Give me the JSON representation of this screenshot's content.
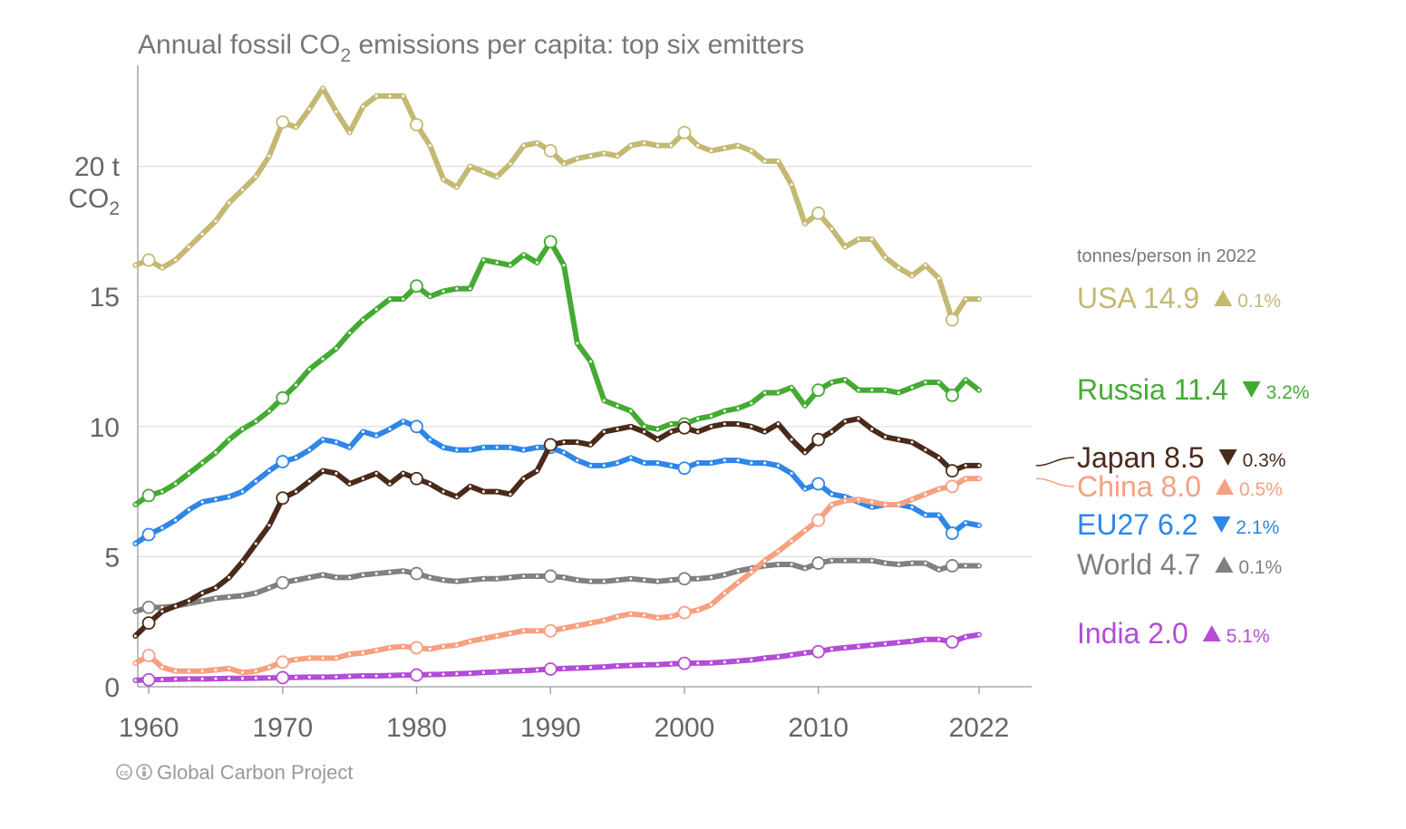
{
  "title": {
    "main": "Annual fossil CO",
    "sub": "2",
    "rest": " emissions per capita: top six emitters"
  },
  "y_unit": {
    "line1": "20 t",
    "line2": "CO",
    "line2_sub": "2"
  },
  "legend_header": "tonnes/person in 2022",
  "credit": {
    "icon": "creative-commons-icon",
    "text": "Global Carbon Project"
  },
  "chart_data": {
    "type": "line",
    "x_range": [
      1959,
      2023
    ],
    "ylim": [
      0,
      23.5
    ],
    "y_ticks": [
      0,
      5,
      10,
      15,
      20
    ],
    "y_tick_labels": [
      "0",
      "5",
      "10",
      "15",
      ""
    ],
    "x_ticks": [
      1960,
      1970,
      1980,
      1990,
      2000,
      2010,
      2022
    ],
    "x_tick_labels": [
      "1960",
      "1970",
      "1980",
      "1990",
      "2000",
      "2010",
      "2022"
    ],
    "grid": "horizontal",
    "legend_placement": "right",
    "series": [
      {
        "name": "World",
        "value_2022": "4.7",
        "change": "0.1%",
        "direction": "up",
        "color": "#808080",
        "x_start": 1959,
        "values": [
          2.9,
          3.05,
          3.05,
          3.1,
          3.2,
          3.3,
          3.4,
          3.45,
          3.5,
          3.6,
          3.8,
          4.0,
          4.1,
          4.2,
          4.3,
          4.2,
          4.2,
          4.3,
          4.35,
          4.4,
          4.45,
          4.35,
          4.2,
          4.1,
          4.05,
          4.1,
          4.15,
          4.15,
          4.2,
          4.25,
          4.25,
          4.25,
          4.2,
          4.1,
          4.05,
          4.05,
          4.1,
          4.15,
          4.1,
          4.05,
          4.1,
          4.15,
          4.15,
          4.2,
          4.3,
          4.45,
          4.55,
          4.65,
          4.7,
          4.7,
          4.55,
          4.75,
          4.85,
          4.85,
          4.85,
          4.85,
          4.75,
          4.7,
          4.75,
          4.75,
          4.5,
          4.65,
          4.65,
          4.65
        ]
      },
      {
        "name": "USA",
        "value_2022": "14.9",
        "change": "0.1%",
        "direction": "up",
        "color": "#c4b973",
        "x_start": 1959,
        "values": [
          16.2,
          16.4,
          16.1,
          16.4,
          16.9,
          17.4,
          17.9,
          18.6,
          19.1,
          19.6,
          20.4,
          21.7,
          21.5,
          22.2,
          23.0,
          22.1,
          21.3,
          22.3,
          22.7,
          22.7,
          22.7,
          21.6,
          20.8,
          19.5,
          19.2,
          20.0,
          19.8,
          19.6,
          20.1,
          20.8,
          20.9,
          20.6,
          20.1,
          20.3,
          20.4,
          20.5,
          20.4,
          20.8,
          20.9,
          20.8,
          20.8,
          21.3,
          20.8,
          20.6,
          20.7,
          20.8,
          20.6,
          20.2,
          20.2,
          19.3,
          17.8,
          18.2,
          17.6,
          16.9,
          17.2,
          17.2,
          16.5,
          16.1,
          15.8,
          16.2,
          15.7,
          14.1,
          14.9,
          14.9
        ]
      },
      {
        "name": "Russia",
        "value_2022": "11.4",
        "change": "3.2%",
        "direction": "down",
        "color": "#44aa33",
        "x_start": 1959,
        "values": [
          7.0,
          7.35,
          7.5,
          7.8,
          8.2,
          8.6,
          9.0,
          9.5,
          9.9,
          10.2,
          10.6,
          11.1,
          11.6,
          12.2,
          12.6,
          13.0,
          13.6,
          14.1,
          14.5,
          14.9,
          14.9,
          15.4,
          15.0,
          15.2,
          15.3,
          15.3,
          16.4,
          16.3,
          16.2,
          16.6,
          16.3,
          17.1,
          16.2,
          13.2,
          12.5,
          11.0,
          10.8,
          10.6,
          10.0,
          9.9,
          10.1,
          10.1,
          10.3,
          10.4,
          10.6,
          10.7,
          10.9,
          11.3,
          11.3,
          11.5,
          10.8,
          11.4,
          11.7,
          11.8,
          11.4,
          11.4,
          11.4,
          11.3,
          11.5,
          11.7,
          11.7,
          11.2,
          11.8,
          11.4
        ]
      },
      {
        "name": "EU27",
        "value_2022": "6.2",
        "change": "2.1%",
        "direction": "down",
        "color": "#2e86e6",
        "x_start": 1959,
        "values": [
          5.5,
          5.85,
          6.1,
          6.4,
          6.8,
          7.1,
          7.2,
          7.3,
          7.5,
          7.9,
          8.3,
          8.65,
          8.8,
          9.1,
          9.5,
          9.4,
          9.2,
          9.8,
          9.65,
          9.9,
          10.2,
          10.0,
          9.5,
          9.2,
          9.1,
          9.1,
          9.2,
          9.2,
          9.2,
          9.1,
          9.2,
          9.2,
          9.0,
          8.7,
          8.5,
          8.5,
          8.6,
          8.8,
          8.6,
          8.6,
          8.5,
          8.4,
          8.6,
          8.6,
          8.7,
          8.7,
          8.6,
          8.6,
          8.5,
          8.2,
          7.6,
          7.8,
          7.4,
          7.3,
          7.1,
          6.9,
          7.0,
          7.0,
          6.9,
          6.6,
          6.6,
          5.9,
          6.3,
          6.2
        ]
      },
      {
        "name": "Japan",
        "value_2022": "8.5",
        "change": "0.3%",
        "direction": "down",
        "color": "#4a2a1a",
        "x_start": 1959,
        "values": [
          1.95,
          2.45,
          2.9,
          3.1,
          3.3,
          3.6,
          3.8,
          4.2,
          4.8,
          5.5,
          6.2,
          7.25,
          7.5,
          7.9,
          8.3,
          8.2,
          7.8,
          8.0,
          8.2,
          7.8,
          8.2,
          8.0,
          7.8,
          7.5,
          7.3,
          7.7,
          7.5,
          7.5,
          7.4,
          8.0,
          8.3,
          9.3,
          9.4,
          9.4,
          9.3,
          9.8,
          9.9,
          10.0,
          9.8,
          9.5,
          9.8,
          9.95,
          9.8,
          10.0,
          10.1,
          10.1,
          10.0,
          9.8,
          10.1,
          9.5,
          9.0,
          9.5,
          9.8,
          10.2,
          10.3,
          9.9,
          9.6,
          9.5,
          9.4,
          9.1,
          8.8,
          8.3,
          8.5,
          8.5
        ]
      },
      {
        "name": "China",
        "value_2022": "8.0",
        "change": "0.5%",
        "direction": "up",
        "color": "#f7a080",
        "x_start": 1959,
        "values": [
          0.9,
          1.2,
          0.75,
          0.6,
          0.6,
          0.6,
          0.65,
          0.7,
          0.55,
          0.6,
          0.75,
          0.95,
          1.05,
          1.1,
          1.1,
          1.1,
          1.25,
          1.3,
          1.4,
          1.5,
          1.55,
          1.5,
          1.45,
          1.55,
          1.6,
          1.75,
          1.85,
          1.95,
          2.05,
          2.15,
          2.15,
          2.15,
          2.25,
          2.35,
          2.45,
          2.55,
          2.7,
          2.8,
          2.75,
          2.65,
          2.7,
          2.85,
          2.95,
          3.15,
          3.6,
          4.0,
          4.4,
          4.85,
          5.2,
          5.6,
          6.0,
          6.4,
          7.0,
          7.15,
          7.2,
          7.1,
          7.0,
          7.0,
          7.2,
          7.4,
          7.6,
          7.7,
          8.0,
          8.0
        ]
      },
      {
        "name": "India",
        "value_2022": "2.0",
        "change": "5.1%",
        "direction": "up",
        "color": "#b44cd6",
        "x_start": 1959,
        "values": [
          0.25,
          0.27,
          0.28,
          0.29,
          0.3,
          0.3,
          0.31,
          0.32,
          0.32,
          0.33,
          0.34,
          0.35,
          0.36,
          0.37,
          0.37,
          0.38,
          0.4,
          0.42,
          0.42,
          0.43,
          0.45,
          0.45,
          0.47,
          0.48,
          0.5,
          0.52,
          0.55,
          0.57,
          0.6,
          0.62,
          0.65,
          0.68,
          0.7,
          0.72,
          0.74,
          0.76,
          0.8,
          0.82,
          0.84,
          0.85,
          0.88,
          0.9,
          0.91,
          0.92,
          0.95,
          0.99,
          1.03,
          1.1,
          1.15,
          1.22,
          1.3,
          1.35,
          1.45,
          1.5,
          1.55,
          1.6,
          1.65,
          1.7,
          1.75,
          1.82,
          1.82,
          1.72,
          1.92,
          2.0
        ]
      }
    ]
  }
}
